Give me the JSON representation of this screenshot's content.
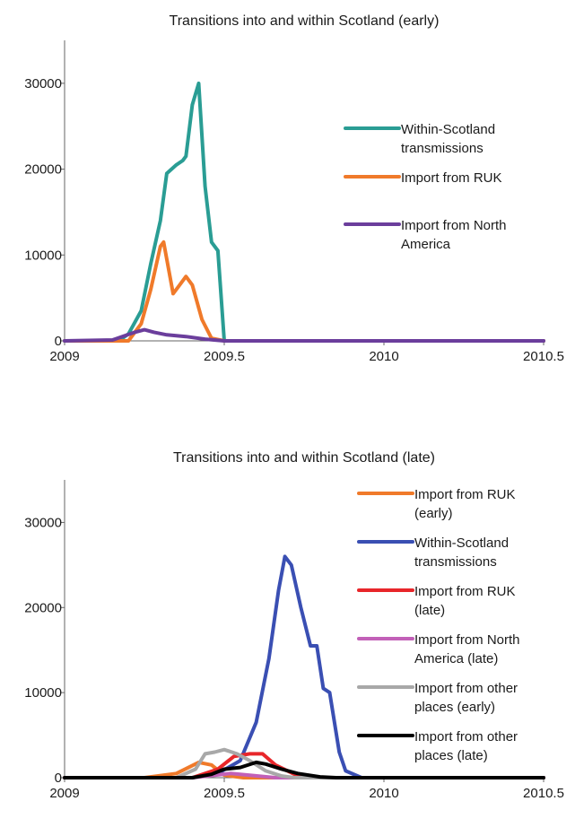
{
  "chart_data": [
    {
      "type": "line",
      "title": "Transitions into and within Scotland (early)",
      "xlabel": "",
      "ylabel": "",
      "xlim": [
        2009,
        2010.5
      ],
      "ylim": [
        0,
        35000
      ],
      "x_ticks": [
        "2009",
        "2009.5",
        "2010",
        "2010.5"
      ],
      "y_ticks": [
        "0",
        "10000",
        "20000",
        "30000"
      ],
      "x_tick_values": [
        2009,
        2009.5,
        2010,
        2010.5
      ],
      "y_tick_values": [
        0,
        10000,
        20000,
        30000
      ],
      "legend_position": "right",
      "series": [
        {
          "name": "Within-Scotland transmissions",
          "legend_lines": [
            "Within-Scotland",
            "transmissions"
          ],
          "color": "#2a9d94",
          "points": [
            [
              2009,
              0
            ],
            [
              2009.17,
              0
            ],
            [
              2009.2,
              800
            ],
            [
              2009.24,
              3500
            ],
            [
              2009.27,
              9000
            ],
            [
              2009.3,
              14000
            ],
            [
              2009.32,
              19500
            ],
            [
              2009.35,
              20500
            ],
            [
              2009.37,
              21000
            ],
            [
              2009.38,
              21500
            ],
            [
              2009.4,
              27500
            ],
            [
              2009.42,
              30000
            ],
            [
              2009.44,
              18000
            ],
            [
              2009.46,
              11500
            ],
            [
              2009.48,
              10500
            ],
            [
              2009.5,
              0
            ],
            [
              2009.6,
              0
            ],
            [
              2010.5,
              0
            ]
          ]
        },
        {
          "name": "Import from RUK",
          "legend_lines": [
            "Import from RUK"
          ],
          "color": "#f07a2a",
          "points": [
            [
              2009,
              0
            ],
            [
              2009.2,
              0
            ],
            [
              2009.24,
              2000
            ],
            [
              2009.27,
              6000
            ],
            [
              2009.3,
              11000
            ],
            [
              2009.31,
              11500
            ],
            [
              2009.34,
              5500
            ],
            [
              2009.36,
              6500
            ],
            [
              2009.38,
              7500
            ],
            [
              2009.4,
              6500
            ],
            [
              2009.43,
              2500
            ],
            [
              2009.46,
              300
            ],
            [
              2009.5,
              0
            ],
            [
              2010.5,
              0
            ]
          ]
        },
        {
          "name": "Import from North America",
          "legend_lines": [
            "Import from North",
            "America"
          ],
          "color": "#6b3e9c",
          "points": [
            [
              2009,
              0
            ],
            [
              2009.15,
              100
            ],
            [
              2009.22,
              1000
            ],
            [
              2009.25,
              1300
            ],
            [
              2009.28,
              1000
            ],
            [
              2009.32,
              700
            ],
            [
              2009.38,
              500
            ],
            [
              2009.44,
              200
            ],
            [
              2009.5,
              0
            ],
            [
              2010.5,
              0
            ]
          ]
        }
      ]
    },
    {
      "type": "line",
      "title": "Transitions into and within Scotland (late)",
      "xlabel": "",
      "ylabel": "",
      "xlim": [
        2009,
        2010.5
      ],
      "ylim": [
        0,
        35000
      ],
      "x_ticks": [
        "2009",
        "2009.5",
        "2010",
        "2010.5"
      ],
      "y_ticks": [
        "0",
        "10000",
        "20000",
        "30000"
      ],
      "x_tick_values": [
        2009,
        2009.5,
        2010,
        2010.5
      ],
      "y_tick_values": [
        0,
        10000,
        20000,
        30000
      ],
      "legend_position": "right",
      "series": [
        {
          "name": "Import from RUK (early)",
          "legend_lines": [
            "Import from RUK",
            "(early)"
          ],
          "color": "#f07a2a",
          "points": [
            [
              2009,
              0
            ],
            [
              2009.25,
              0
            ],
            [
              2009.35,
              500
            ],
            [
              2009.42,
              1800
            ],
            [
              2009.46,
              1500
            ],
            [
              2009.5,
              300
            ],
            [
              2009.56,
              0
            ],
            [
              2010.5,
              0
            ]
          ]
        },
        {
          "name": "Within-Scotland transmissions",
          "legend_lines": [
            "Within-Scotland",
            "transmissions"
          ],
          "color": "#3a4fb3",
          "points": [
            [
              2009,
              0
            ],
            [
              2009.4,
              0
            ],
            [
              2009.48,
              500
            ],
            [
              2009.55,
              2000
            ],
            [
              2009.6,
              6500
            ],
            [
              2009.64,
              14000
            ],
            [
              2009.67,
              22000
            ],
            [
              2009.69,
              26000
            ],
            [
              2009.71,
              25000
            ],
            [
              2009.74,
              20000
            ],
            [
              2009.77,
              15500
            ],
            [
              2009.79,
              15500
            ],
            [
              2009.81,
              10500
            ],
            [
              2009.83,
              10000
            ],
            [
              2009.86,
              3000
            ],
            [
              2009.88,
              800
            ],
            [
              2009.93,
              0
            ],
            [
              2010.5,
              0
            ]
          ]
        },
        {
          "name": "Import from RUK (late)",
          "legend_lines": [
            "Import from RUK",
            "(late)"
          ],
          "color": "#e8262a",
          "points": [
            [
              2009,
              0
            ],
            [
              2009.4,
              0
            ],
            [
              2009.48,
              1000
            ],
            [
              2009.53,
              2500
            ],
            [
              2009.58,
              2800
            ],
            [
              2009.62,
              2800
            ],
            [
              2009.66,
              1500
            ],
            [
              2009.72,
              400
            ],
            [
              2009.8,
              0
            ],
            [
              2010.5,
              0
            ]
          ]
        },
        {
          "name": "Import from North America (late)",
          "legend_lines": [
            "Import from North",
            "America (late)"
          ],
          "color": "#c260b8",
          "points": [
            [
              2009,
              0
            ],
            [
              2009.4,
              0
            ],
            [
              2009.47,
              300
            ],
            [
              2009.52,
              500
            ],
            [
              2009.58,
              300
            ],
            [
              2009.66,
              0
            ],
            [
              2010.5,
              0
            ]
          ]
        },
        {
          "name": "Import from other places (early)",
          "legend_lines": [
            "Import from other",
            "places (early)"
          ],
          "color": "#a8a8a8",
          "points": [
            [
              2009,
              0
            ],
            [
              2009.35,
              0
            ],
            [
              2009.41,
              1000
            ],
            [
              2009.44,
              2800
            ],
            [
              2009.47,
              3000
            ],
            [
              2009.5,
              3300
            ],
            [
              2009.54,
              2800
            ],
            [
              2009.58,
              2000
            ],
            [
              2009.63,
              800
            ],
            [
              2009.68,
              200
            ],
            [
              2009.72,
              0
            ],
            [
              2010.5,
              0
            ]
          ]
        },
        {
          "name": "Import from other places (late)",
          "legend_lines": [
            "Import from other",
            "places (late)"
          ],
          "color": "#000000",
          "points": [
            [
              2009,
              0
            ],
            [
              2009.4,
              0
            ],
            [
              2009.46,
              400
            ],
            [
              2009.5,
              1000
            ],
            [
              2009.55,
              1200
            ],
            [
              2009.6,
              1800
            ],
            [
              2009.63,
              1600
            ],
            [
              2009.68,
              1000
            ],
            [
              2009.73,
              500
            ],
            [
              2009.8,
              100
            ],
            [
              2009.85,
              0
            ],
            [
              2010.5,
              0
            ]
          ]
        }
      ]
    }
  ]
}
